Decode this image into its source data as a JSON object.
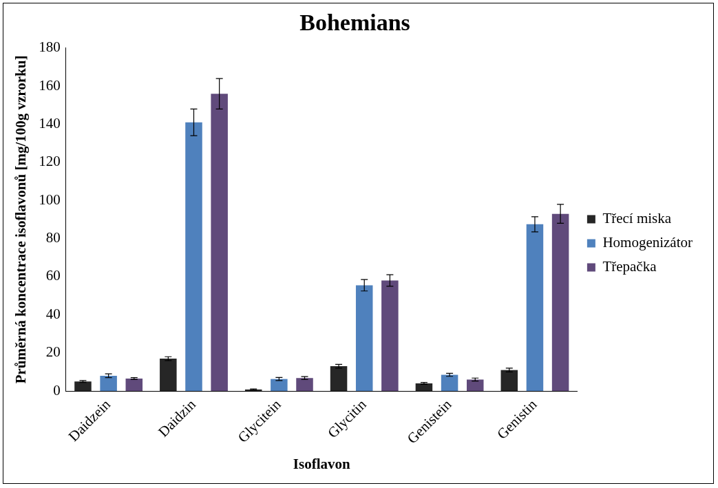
{
  "chart_data": {
    "type": "bar",
    "title": "Bohemians",
    "xlabel": "Isoflavon",
    "ylabel": "Průměrná koncentrace isoflavonů [mg/100g vzrorku]",
    "categories": [
      "Daidzein",
      "Daidzin",
      "Glycitein",
      "Glycitin",
      "Genistein",
      "Genistin"
    ],
    "series": [
      {
        "name": "Třecí miska",
        "color": "#262626",
        "values": [
          5,
          17,
          0.8,
          13,
          4,
          11
        ],
        "errors": [
          0.5,
          1,
          0.3,
          1,
          0.5,
          1
        ]
      },
      {
        "name": "Homogenizátor",
        "color": "#4f81bd",
        "values": [
          8,
          141,
          6.3,
          55.5,
          8.5,
          87.5
        ],
        "errors": [
          1,
          7,
          0.8,
          3,
          0.8,
          4
        ]
      },
      {
        "name": "Třepačka",
        "color": "#604a7b",
        "values": [
          6.5,
          156,
          6.8,
          58,
          6,
          93
        ],
        "errors": [
          0.5,
          8,
          0.8,
          3,
          0.8,
          5
        ]
      }
    ],
    "ylim": [
      0,
      180
    ],
    "yticks": [
      0,
      20,
      40,
      60,
      80,
      100,
      120,
      140,
      160,
      180
    ],
    "grid": false,
    "legend": "right"
  }
}
